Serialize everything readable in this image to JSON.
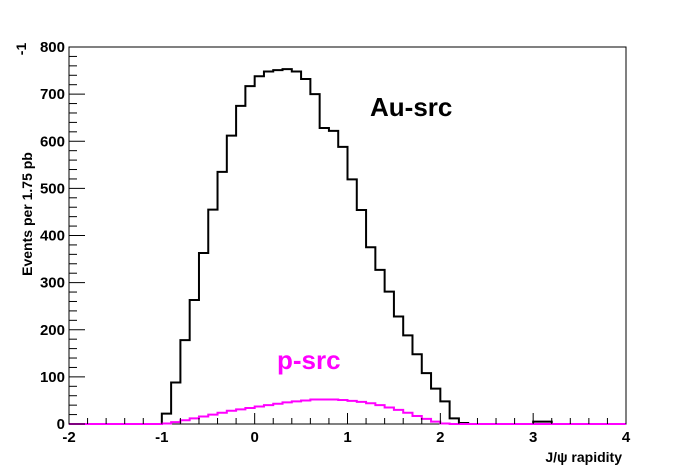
{
  "chart_data": {
    "type": "line",
    "xlabel": "J/ψ rapidity",
    "ylabel": "Events per 1.75 pb",
    "ylabel_superscript": "-1",
    "xlim": [
      -2,
      4
    ],
    "ylim": [
      0,
      800
    ],
    "xticks": [
      "-2",
      "-1",
      "0",
      "1",
      "2",
      "3",
      "4"
    ],
    "yticks": [
      "0",
      "100",
      "200",
      "300",
      "400",
      "500",
      "600",
      "700",
      "800"
    ],
    "grid": false,
    "annotations": [
      {
        "text": "Au-src",
        "color": "#000000"
      },
      {
        "text": "p-src",
        "color": "#ff00ff"
      }
    ],
    "bin_width": 0.1,
    "series": [
      {
        "name": "Au-src",
        "color": "#000000",
        "x": [
          -2.0,
          -1.9,
          -1.8,
          -1.7,
          -1.6,
          -1.5,
          -1.4,
          -1.3,
          -1.2,
          -1.1,
          -1.0,
          -0.9,
          -0.8,
          -0.7,
          -0.6,
          -0.5,
          -0.4,
          -0.3,
          -0.2,
          -0.1,
          0.0,
          0.1,
          0.2,
          0.3,
          0.4,
          0.5,
          0.6,
          0.7,
          0.8,
          0.9,
          1.0,
          1.1,
          1.2,
          1.3,
          1.4,
          1.5,
          1.6,
          1.7,
          1.8,
          1.9,
          2.0,
          2.1,
          2.2,
          2.3,
          2.4,
          2.5,
          2.6,
          2.7,
          2.8,
          2.9,
          3.0,
          3.1,
          3.2,
          3.3,
          3.4,
          3.5,
          3.6,
          3.7,
          3.8,
          3.9
        ],
        "values": [
          0,
          0,
          0,
          0,
          0,
          0,
          0,
          0,
          0,
          0,
          22,
          88,
          178,
          263,
          363,
          455,
          535,
          612,
          675,
          717,
          738,
          748,
          751,
          753,
          748,
          732,
          700,
          628,
          622,
          588,
          519,
          454,
          375,
          327,
          281,
          228,
          188,
          148,
          108,
          75,
          48,
          12,
          2,
          0,
          0,
          0,
          0,
          0,
          0,
          0,
          5,
          5,
          0,
          0,
          0,
          0,
          0,
          0,
          0,
          0
        ]
      },
      {
        "name": "p-src",
        "color": "#ff00ff",
        "x": [
          -2.0,
          -1.9,
          -1.8,
          -1.7,
          -1.6,
          -1.5,
          -1.4,
          -1.3,
          -1.2,
          -1.1,
          -1.0,
          -0.9,
          -0.8,
          -0.7,
          -0.6,
          -0.5,
          -0.4,
          -0.3,
          -0.2,
          -0.1,
          0.0,
          0.1,
          0.2,
          0.3,
          0.4,
          0.5,
          0.6,
          0.7,
          0.8,
          0.9,
          1.0,
          1.1,
          1.2,
          1.3,
          1.4,
          1.5,
          1.6,
          1.7,
          1.8,
          1.9,
          2.0,
          2.1,
          2.2,
          2.3,
          2.4,
          2.5,
          2.6,
          2.7,
          2.8,
          2.9,
          3.0,
          3.1,
          3.2,
          3.3,
          3.4,
          3.5,
          3.6,
          3.7,
          3.8,
          3.9
        ],
        "values": [
          0,
          0,
          0,
          0,
          0,
          0,
          0,
          0,
          0,
          0,
          1,
          4,
          8,
          12,
          16,
          20,
          24,
          28,
          31,
          34,
          37,
          40,
          43,
          46,
          48,
          50,
          52,
          52,
          52,
          51,
          49,
          47,
          44,
          40,
          35,
          30,
          24,
          17,
          11,
          5,
          1,
          0,
          0,
          0,
          0,
          0,
          0,
          0,
          0,
          0,
          0,
          0,
          0,
          0,
          0,
          0,
          0,
          0,
          0,
          0
        ]
      }
    ]
  }
}
